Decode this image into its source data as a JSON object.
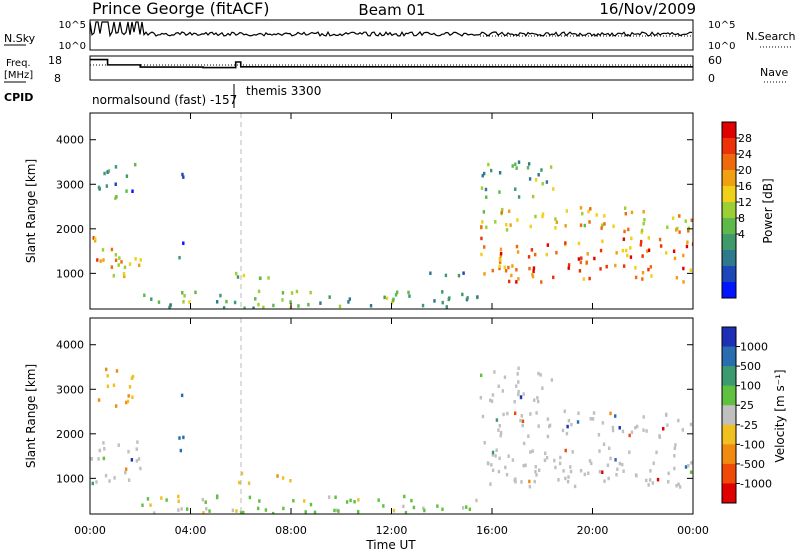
{
  "header": {
    "title": "Prince George (fitACF)",
    "beam": "Beam 01",
    "date": "16/Nov/2009"
  },
  "nsky_panel": {
    "left_label": "N.Sky",
    "left_ticks": [
      "10^5",
      "10^0"
    ],
    "right_label": "N.Search",
    "right_ticks": [
      "10^5",
      "10^0"
    ]
  },
  "freq_panel": {
    "left_label_1": "Freq.",
    "left_label_2": "[MHz]",
    "left_ticks": [
      "18",
      "8"
    ],
    "right_label": "Nave",
    "right_ticks": [
      "60",
      "0"
    ],
    "cpid_label": "CPID",
    "cpid_1": "normalsound (fast) -157",
    "cpid_2": "themis 3300",
    "freq_steps": [
      {
        "t": 0.0,
        "v": 16.5
      },
      {
        "t": 0.7,
        "v": 14.3
      },
      {
        "t": 2.0,
        "v": 13.4
      },
      {
        "t": 4.5,
        "v": 13.2
      },
      {
        "t": 5.8,
        "v": 15.5
      },
      {
        "t": 6.0,
        "v": 13.5
      },
      {
        "t": 24.0,
        "v": 13.5
      }
    ]
  },
  "power_panel": {
    "ylabel": "Slant Range [km]",
    "yticks": [
      "1000",
      "2000",
      "3000",
      "4000"
    ],
    "ylim": [
      200,
      4600
    ],
    "colorbar_label": "Power [dB]",
    "colorbar_ticks": [
      "4",
      "8",
      "12",
      "16",
      "20",
      "24",
      "28"
    ],
    "colors": [
      "#0016ff",
      "#1b47b8",
      "#2e7a8c",
      "#3f9a6b",
      "#5fb84a",
      "#9ccf33",
      "#f0d018",
      "#f0a010",
      "#ef6a0c",
      "#ec3208",
      "#e00000"
    ]
  },
  "velocity_panel": {
    "ylabel": "Slant Range [km]",
    "yticks": [
      "1000",
      "2000",
      "3000",
      "4000"
    ],
    "ylim": [
      200,
      4600
    ],
    "colorbar_label": "Velocity [m s⁻¹]",
    "colorbar_ticks": [
      "1000",
      "500",
      "100",
      "25",
      "-25",
      "-100",
      "-500",
      "-1000"
    ],
    "colors": [
      "#1c2fb5",
      "#2a6cb0",
      "#3c9a70",
      "#60c040",
      "#c0c0c0",
      "#f0c020",
      "#f08a10",
      "#ef4a08",
      "#e00000"
    ]
  },
  "time_axis": {
    "label": "Time UT",
    "ticks": [
      "00:00",
      "04:00",
      "08:00",
      "12:00",
      "16:00",
      "20:00",
      "00:00"
    ]
  },
  "chart_data": [
    {
      "type": "heatmap",
      "name": "Power",
      "xlabel": "Time UT",
      "ylabel": "Slant Range [km]",
      "xlim": [
        0,
        24
      ],
      "ylim": [
        200,
        4600
      ],
      "zlabel": "Power [dB]",
      "regions": [
        {
          "t": [
            0.0,
            2.0
          ],
          "r": [
            850,
            1850
          ],
          "p": 22
        },
        {
          "t": [
            0.3,
            1.8
          ],
          "r": [
            2600,
            3500
          ],
          "p": 8
        },
        {
          "t": [
            3.5,
            3.7
          ],
          "r": [
            1300,
            3500
          ],
          "p": 8
        },
        {
          "t": [
            5.5,
            8.0
          ],
          "r": [
            870,
            1120
          ],
          "p": 16
        },
        {
          "t": [
            2.0,
            15.5
          ],
          "r": [
            200,
            600
          ],
          "p": 12
        },
        {
          "t": [
            13.5,
            15.5
          ],
          "r": [
            900,
            1100
          ],
          "p": 8
        },
        {
          "t": [
            15.5,
            24.0
          ],
          "r": [
            800,
            1800
          ],
          "p": 26
        },
        {
          "t": [
            15.5,
            24.0
          ],
          "r": [
            1900,
            2500
          ],
          "p": 20
        },
        {
          "t": [
            15.5,
            18.5
          ],
          "r": [
            2700,
            3500
          ],
          "p": 12
        }
      ]
    },
    {
      "type": "heatmap",
      "name": "Velocity",
      "xlabel": "Time UT",
      "ylabel": "Slant Range [km]",
      "xlim": [
        0,
        24
      ],
      "ylim": [
        200,
        4600
      ],
      "zlabel": "Velocity [m s⁻¹]",
      "regions": [
        {
          "t": [
            0.0,
            2.0
          ],
          "r": [
            850,
            1850
          ],
          "v": 0
        },
        {
          "t": [
            0.3,
            1.8
          ],
          "r": [
            2600,
            3500
          ],
          "v": -100
        },
        {
          "t": [
            3.5,
            3.7
          ],
          "r": [
            1300,
            3500
          ],
          "v": 500
        },
        {
          "t": [
            5.5,
            8.0
          ],
          "r": [
            870,
            1120
          ],
          "v": -100
        },
        {
          "t": [
            2.0,
            15.5
          ],
          "r": [
            200,
            600
          ],
          "v": 50
        },
        {
          "t": [
            15.5,
            24.0
          ],
          "r": [
            800,
            1800
          ],
          "v": 0
        },
        {
          "t": [
            15.5,
            24.0
          ],
          "r": [
            1900,
            2500
          ],
          "v": 0
        },
        {
          "t": [
            15.5,
            18.5
          ],
          "r": [
            2700,
            3500
          ],
          "v": 0
        }
      ]
    }
  ]
}
